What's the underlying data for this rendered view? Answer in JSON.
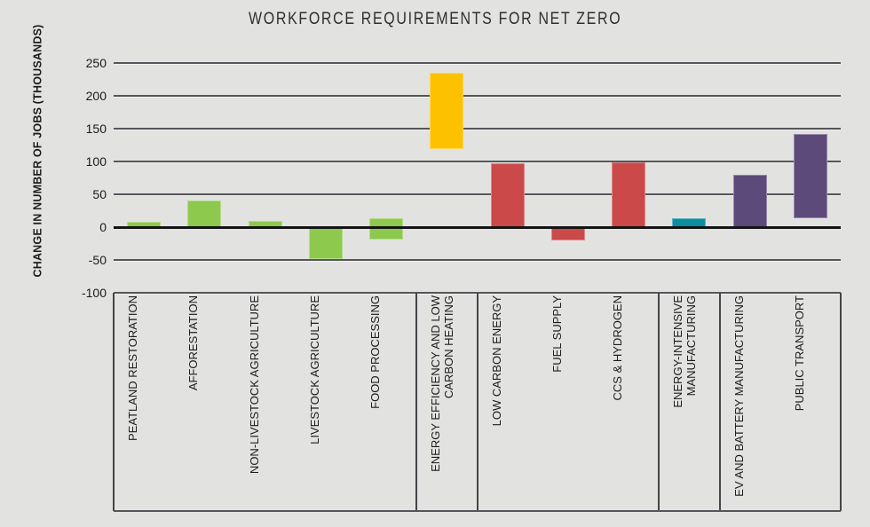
{
  "chart_data": {
    "type": "bar",
    "title": "WORKFORCE REQUIREMENTS FOR NET ZERO",
    "ylabel": "CHANGE IN NUMBER OF JOBS (THOUSANDS)",
    "ylim": [
      -100,
      250
    ],
    "yticks": [
      250,
      200,
      150,
      100,
      50,
      0,
      "-50",
      "-100"
    ],
    "ytick_values": [
      250,
      200,
      150,
      100,
      50,
      0,
      -50,
      -100
    ],
    "grid": true,
    "legend": "none",
    "bar_style": "floating range bars; each bar spans min to max (thousands of jobs)",
    "groups": [
      {
        "color": "#8cc94d",
        "bars": [
          {
            "label": "PEATLAND RESTORATION",
            "min": 0,
            "max": 8
          },
          {
            "label": "AFFORESTATION",
            "min": 0,
            "max": 41
          },
          {
            "label": "NON-LIVESTOCK AGRICULTURE",
            "min": 0,
            "max": 9
          },
          {
            "label": "LIVESTOCK AGRICULTURE",
            "min": -48,
            "max": 0
          },
          {
            "label": "FOOD PROCESSING",
            "min": -19,
            "max": 14
          }
        ]
      },
      {
        "color": "#fec100",
        "bars": [
          {
            "label": "ENERGY EFFICIENCY AND LOW\nCARBON HEATING",
            "min": 119,
            "max": 235
          }
        ]
      },
      {
        "color": "#cc4949",
        "bars": [
          {
            "label": "LOW CARBON ENERGY",
            "min": 0,
            "max": 97
          },
          {
            "label": "FUEL SUPPLY",
            "min": -20,
            "max": 0
          },
          {
            "label": "CCS & HYDROGEN",
            "min": 0,
            "max": 99
          }
        ]
      },
      {
        "color": "#0d8da0",
        "bars": [
          {
            "label": "ENERGY-INTENSIVE\nMANUFACTURING",
            "min": 0,
            "max": 14
          }
        ]
      },
      {
        "color": "#5c4a7b",
        "bars": [
          {
            "label": "EV AND BATTERY MANUFACTURING",
            "min": 0,
            "max": 80
          },
          {
            "label": "PUBLIC TRANSPORT",
            "min": 13,
            "max": 142
          }
        ]
      }
    ],
    "style_colors": {
      "background": "#e2e2e0",
      "gridline": "#55555a",
      "zero_line": "#141414",
      "separator": "#454548",
      "text": "#1c1c1c"
    }
  }
}
